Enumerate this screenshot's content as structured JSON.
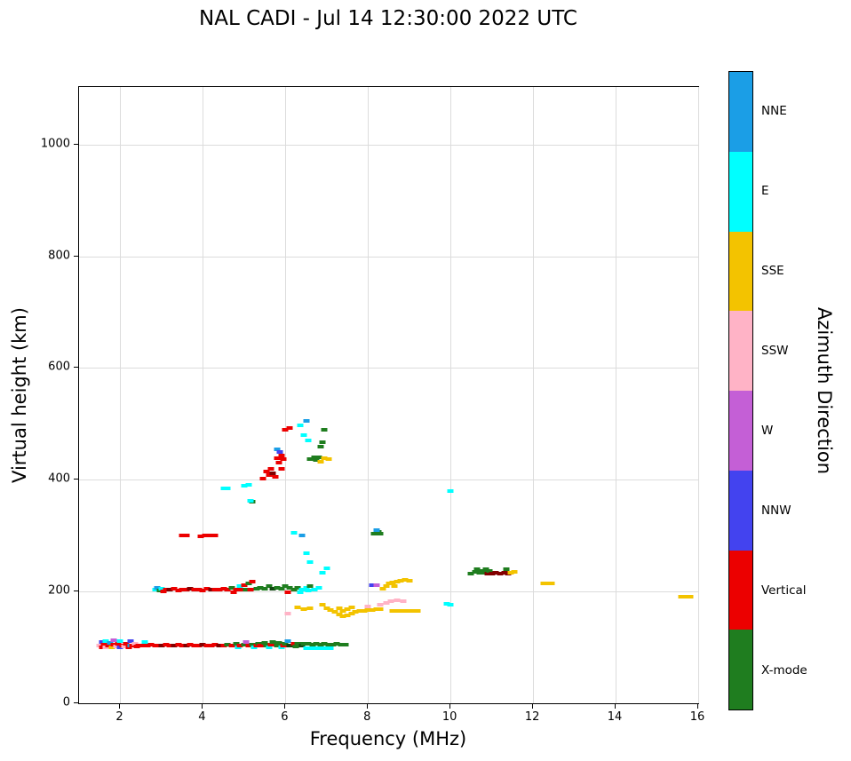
{
  "title": "NAL CADI - Jul 14 12:30:00 2022 UTC",
  "chart_data": {
    "type": "scatter",
    "title": "NAL CADI - Jul 14 12:30:00 2022 UTC",
    "xlabel": "Frequency (MHz)",
    "ylabel": "Virtual height (km)",
    "colorbar_title": "Azimuth Direction",
    "xlim": [
      1,
      16
    ],
    "ylim": [
      0,
      1103
    ],
    "xticks": [
      2,
      4,
      6,
      8,
      10,
      12,
      14,
      16
    ],
    "yticks": [
      0,
      200,
      400,
      600,
      800,
      1000
    ],
    "grid": true,
    "marker": "square",
    "categories": [
      {
        "code": "NNE",
        "label": "NNE",
        "color": "#1b9ee6"
      },
      {
        "code": "E",
        "label": "E",
        "color": "#00ffff"
      },
      {
        "code": "SSE",
        "label": "SSE",
        "color": "#f3c300"
      },
      {
        "code": "SSW",
        "label": "SSW",
        "color": "#ffb3c6"
      },
      {
        "code": "W",
        "label": "W",
        "color": "#c45fd6"
      },
      {
        "code": "NNW",
        "label": "NNW",
        "color": "#4343ef"
      },
      {
        "code": "V",
        "label": "Vertical",
        "color": "#ec0000"
      },
      {
        "code": "X",
        "label": "X-mode",
        "color": "#1f7d1f"
      }
    ],
    "points": [
      [
        1.5,
        103,
        "SSW"
      ],
      [
        1.55,
        100,
        "V"
      ],
      [
        1.55,
        110,
        "NNW"
      ],
      [
        1.6,
        105,
        "V"
      ],
      [
        1.65,
        100,
        "SSW"
      ],
      [
        1.65,
        112,
        "E"
      ],
      [
        1.7,
        104,
        "V"
      ],
      [
        1.75,
        108,
        "NNE"
      ],
      [
        1.8,
        100,
        "SSE"
      ],
      [
        1.85,
        105,
        "V"
      ],
      [
        1.85,
        113,
        "W"
      ],
      [
        1.9,
        102,
        "SSW"
      ],
      [
        1.95,
        107,
        "V"
      ],
      [
        2.0,
        100,
        "NNW"
      ],
      [
        2.0,
        112,
        "E"
      ],
      [
        2.05,
        104,
        "V"
      ],
      [
        2.1,
        102,
        "SSW"
      ],
      [
        2.15,
        106,
        "V"
      ],
      [
        2.2,
        100,
        "V"
      ],
      [
        2.25,
        104,
        "NNE"
      ],
      [
        2.25,
        112,
        "NNW"
      ],
      [
        2.3,
        103,
        "V"
      ],
      [
        2.35,
        106,
        "SSW"
      ],
      [
        2.4,
        102,
        "V"
      ],
      [
        2.45,
        104,
        "V"
      ],
      [
        2.55,
        103,
        "V"
      ],
      [
        2.6,
        110,
        "E"
      ],
      [
        2.65,
        104,
        "V"
      ],
      [
        2.75,
        105,
        "V"
      ],
      [
        2.85,
        103,
        "V"
      ],
      [
        2.9,
        104,
        "V"
      ],
      [
        3.0,
        104,
        "V",
        1
      ],
      [
        3.1,
        105,
        "V"
      ],
      [
        3.2,
        104,
        "V"
      ],
      [
        3.3,
        103,
        "V",
        1
      ],
      [
        3.4,
        105,
        "V"
      ],
      [
        3.5,
        104,
        "V"
      ],
      [
        3.6,
        104,
        "V",
        1
      ],
      [
        3.7,
        105,
        "V"
      ],
      [
        3.8,
        104,
        "V"
      ],
      [
        3.9,
        103,
        "V"
      ],
      [
        4.0,
        105,
        "V",
        1
      ],
      [
        4.1,
        104,
        "V"
      ],
      [
        4.2,
        104,
        "V"
      ],
      [
        4.3,
        105,
        "V"
      ],
      [
        4.4,
        104,
        "V",
        1
      ],
      [
        4.5,
        104,
        "V"
      ],
      [
        4.6,
        105,
        "X"
      ],
      [
        4.7,
        104,
        "V"
      ],
      [
        4.8,
        106,
        "X"
      ],
      [
        4.85,
        100,
        "E"
      ],
      [
        4.9,
        104,
        "V"
      ],
      [
        5.0,
        105,
        "X"
      ],
      [
        5.05,
        110,
        "W"
      ],
      [
        5.1,
        103,
        "V"
      ],
      [
        5.2,
        105,
        "X"
      ],
      [
        5.25,
        100,
        "E"
      ],
      [
        5.3,
        104,
        "V"
      ],
      [
        5.35,
        107,
        "X"
      ],
      [
        5.4,
        103,
        "V"
      ],
      [
        5.5,
        108,
        "X"
      ],
      [
        5.55,
        104,
        "X"
      ],
      [
        5.6,
        100,
        "E"
      ],
      [
        5.65,
        105,
        "V"
      ],
      [
        5.7,
        109,
        "X"
      ],
      [
        5.8,
        104,
        "X"
      ],
      [
        5.85,
        108,
        "X"
      ],
      [
        5.9,
        100,
        "E"
      ],
      [
        5.95,
        104,
        "V"
      ],
      [
        6.0,
        107,
        "X"
      ],
      [
        6.05,
        112,
        "NNE"
      ],
      [
        6.1,
        104,
        "X",
        1
      ],
      [
        6.2,
        106,
        "V"
      ],
      [
        6.25,
        102,
        "X"
      ],
      [
        6.3,
        107,
        "X"
      ],
      [
        6.4,
        104,
        "X",
        1
      ],
      [
        6.45,
        107,
        "X"
      ],
      [
        6.5,
        99,
        "E"
      ],
      [
        6.6,
        98,
        "E"
      ],
      [
        6.7,
        99,
        "E"
      ],
      [
        6.8,
        98,
        "E"
      ],
      [
        6.9,
        99,
        "E"
      ],
      [
        7.0,
        98,
        "E"
      ],
      [
        7.1,
        99,
        "E"
      ],
      [
        6.55,
        106,
        "X"
      ],
      [
        6.65,
        105,
        "X"
      ],
      [
        6.75,
        106,
        "X"
      ],
      [
        6.85,
        105,
        "X"
      ],
      [
        6.95,
        106,
        "X"
      ],
      [
        7.05,
        105,
        "X"
      ],
      [
        7.15,
        105,
        "X"
      ],
      [
        7.25,
        106,
        "X"
      ],
      [
        7.35,
        105,
        "X"
      ],
      [
        7.45,
        105,
        "X"
      ],
      [
        2.85,
        203,
        "E"
      ],
      [
        2.9,
        206,
        "NNE"
      ],
      [
        2.95,
        202,
        "X"
      ],
      [
        3.0,
        205,
        "E"
      ],
      [
        3.05,
        200,
        "V"
      ],
      [
        3.1,
        204,
        "V"
      ],
      [
        3.2,
        203,
        "V",
        1
      ],
      [
        3.3,
        205,
        "V"
      ],
      [
        3.4,
        202,
        "V"
      ],
      [
        3.5,
        204,
        "V"
      ],
      [
        3.6,
        203,
        "V"
      ],
      [
        3.7,
        205,
        "V",
        1
      ],
      [
        3.8,
        203,
        "V"
      ],
      [
        3.9,
        204,
        "V"
      ],
      [
        4.0,
        202,
        "V"
      ],
      [
        4.1,
        205,
        "V"
      ],
      [
        4.2,
        203,
        "V",
        1
      ],
      [
        4.3,
        204,
        "V"
      ],
      [
        4.4,
        203,
        "V"
      ],
      [
        4.5,
        205,
        "V"
      ],
      [
        4.6,
        203,
        "V"
      ],
      [
        4.7,
        206,
        "X"
      ],
      [
        4.75,
        199,
        "V"
      ],
      [
        4.8,
        204,
        "V"
      ],
      [
        4.9,
        210,
        "E"
      ],
      [
        4.95,
        203,
        "V"
      ],
      [
        5.0,
        212,
        "V"
      ],
      [
        5.05,
        204,
        "X"
      ],
      [
        5.1,
        215,
        "X"
      ],
      [
        5.15,
        203,
        "V"
      ],
      [
        5.2,
        218,
        "V"
      ],
      [
        5.3,
        205,
        "X"
      ],
      [
        5.4,
        207,
        "X"
      ],
      [
        5.5,
        205,
        "X"
      ],
      [
        5.6,
        209,
        "X"
      ],
      [
        5.7,
        205,
        "X",
        1
      ],
      [
        5.8,
        207,
        "X"
      ],
      [
        5.9,
        205,
        "X"
      ],
      [
        6.0,
        209,
        "X"
      ],
      [
        6.05,
        199,
        "V"
      ],
      [
        6.1,
        206,
        "X"
      ],
      [
        6.2,
        204,
        "X"
      ],
      [
        6.3,
        207,
        "X"
      ],
      [
        6.35,
        199,
        "E"
      ],
      [
        6.4,
        204,
        "E"
      ],
      [
        6.5,
        206,
        "E"
      ],
      [
        6.55,
        202,
        "E"
      ],
      [
        6.6,
        209,
        "X"
      ],
      [
        6.7,
        204,
        "E"
      ],
      [
        6.8,
        206,
        "E"
      ],
      [
        6.05,
        160,
        "SSW"
      ],
      [
        6.3,
        171,
        "SSE"
      ],
      [
        6.45,
        169,
        "SSE"
      ],
      [
        6.6,
        170,
        "SSE"
      ],
      [
        6.9,
        177,
        "SSE"
      ],
      [
        7.0,
        170,
        "SSE"
      ],
      [
        7.1,
        167,
        "SSE"
      ],
      [
        7.2,
        163,
        "SSE"
      ],
      [
        7.3,
        159,
        "SSE"
      ],
      [
        7.3,
        170,
        "SSE"
      ],
      [
        7.4,
        156,
        "SSE"
      ],
      [
        7.4,
        166,
        "SSE"
      ],
      [
        7.5,
        158,
        "SSE"
      ],
      [
        7.5,
        168,
        "SSE"
      ],
      [
        7.6,
        160,
        "SSE"
      ],
      [
        7.6,
        172,
        "SSE"
      ],
      [
        7.7,
        163,
        "SSE"
      ],
      [
        7.8,
        165,
        "SSE"
      ],
      [
        7.9,
        166,
        "SSE"
      ],
      [
        8.0,
        167,
        "SSE"
      ],
      [
        8.1,
        167,
        "SSE"
      ],
      [
        8.2,
        168,
        "SSE"
      ],
      [
        8.3,
        168,
        "SSE"
      ],
      [
        8.35,
        205,
        "SSE"
      ],
      [
        8.45,
        210,
        "SSE"
      ],
      [
        8.5,
        214,
        "SSE"
      ],
      [
        8.6,
        216,
        "SSE"
      ],
      [
        8.65,
        210,
        "SSE"
      ],
      [
        8.7,
        218,
        "SSE"
      ],
      [
        8.8,
        220,
        "SSE"
      ],
      [
        8.9,
        221,
        "SSE"
      ],
      [
        9.0,
        220,
        "SSE"
      ],
      [
        8.6,
        166,
        "SSE"
      ],
      [
        8.7,
        165,
        "SSE"
      ],
      [
        8.8,
        166,
        "SSE"
      ],
      [
        8.9,
        166,
        "SSE"
      ],
      [
        9.0,
        165,
        "SSE"
      ],
      [
        9.1,
        166,
        "SSE"
      ],
      [
        9.2,
        165,
        "SSE"
      ],
      [
        8.0,
        174,
        "SSW"
      ],
      [
        8.3,
        177,
        "SSW"
      ],
      [
        8.45,
        180,
        "SSW"
      ],
      [
        8.55,
        183,
        "SSW"
      ],
      [
        8.7,
        185,
        "SSW"
      ],
      [
        8.85,
        182,
        "SSW"
      ],
      [
        8.1,
        212,
        "NNW"
      ],
      [
        8.2,
        211,
        "W"
      ],
      [
        3.5,
        301,
        "V"
      ],
      [
        3.6,
        300,
        "V"
      ],
      [
        3.95,
        299,
        "V"
      ],
      [
        4.05,
        301,
        "V"
      ],
      [
        4.2,
        300,
        "V"
      ],
      [
        4.3,
        301,
        "V"
      ],
      [
        6.2,
        305,
        "E"
      ],
      [
        6.4,
        300,
        "NNE"
      ],
      [
        8.15,
        304,
        "X"
      ],
      [
        8.25,
        306,
        "X"
      ],
      [
        8.3,
        303,
        "X"
      ],
      [
        8.2,
        310,
        "NNE"
      ],
      [
        5.2,
        360,
        "X"
      ],
      [
        5.15,
        363,
        "E"
      ],
      [
        4.5,
        385,
        "E"
      ],
      [
        4.6,
        384,
        "E"
      ],
      [
        5.0,
        390,
        "E"
      ],
      [
        5.1,
        391,
        "E"
      ],
      [
        5.45,
        402,
        "V"
      ],
      [
        5.55,
        415,
        "V"
      ],
      [
        5.6,
        408,
        "V"
      ],
      [
        5.65,
        420,
        "V"
      ],
      [
        5.7,
        412,
        "V",
        1
      ],
      [
        5.75,
        405,
        "V"
      ],
      [
        5.8,
        438,
        "V"
      ],
      [
        5.85,
        430,
        "V"
      ],
      [
        5.9,
        444,
        "V"
      ],
      [
        5.95,
        437,
        "V"
      ],
      [
        5.9,
        420,
        "V"
      ],
      [
        5.8,
        455,
        "NNE"
      ],
      [
        5.87,
        450,
        "NNW"
      ],
      [
        6.0,
        490,
        "V"
      ],
      [
        6.1,
        492,
        "V"
      ],
      [
        6.5,
        505,
        "NNE"
      ],
      [
        6.35,
        497,
        "E"
      ],
      [
        6.45,
        480,
        "E"
      ],
      [
        6.55,
        470,
        "E"
      ],
      [
        6.6,
        437,
        "X"
      ],
      [
        6.7,
        441,
        "X"
      ],
      [
        6.75,
        436,
        "X"
      ],
      [
        6.8,
        440,
        "X"
      ],
      [
        6.85,
        459,
        "X"
      ],
      [
        6.9,
        467,
        "X"
      ],
      [
        6.95,
        489,
        "X"
      ],
      [
        6.85,
        432,
        "SSE"
      ],
      [
        6.95,
        438,
        "SSE"
      ],
      [
        7.05,
        437,
        "SSE"
      ],
      [
        6.5,
        268,
        "E"
      ],
      [
        6.6,
        252,
        "E"
      ],
      [
        6.9,
        233,
        "E"
      ],
      [
        7.0,
        242,
        "E"
      ],
      [
        9.9,
        178,
        "E"
      ],
      [
        10.0,
        177,
        "E"
      ],
      [
        10.0,
        380,
        "E"
      ],
      [
        10.5,
        232,
        "X"
      ],
      [
        10.6,
        235,
        "X"
      ],
      [
        10.65,
        240,
        "X"
      ],
      [
        10.7,
        233,
        "X"
      ],
      [
        10.75,
        237,
        "X"
      ],
      [
        10.8,
        234,
        "X"
      ],
      [
        10.85,
        240,
        "X"
      ],
      [
        10.9,
        232,
        "V",
        1
      ],
      [
        10.95,
        237,
        "X"
      ],
      [
        11.0,
        232,
        "V",
        1
      ],
      [
        11.1,
        233,
        "V",
        1
      ],
      [
        11.2,
        232,
        "V",
        1
      ],
      [
        11.3,
        234,
        "V",
        1
      ],
      [
        11.35,
        240,
        "X"
      ],
      [
        11.4,
        232,
        "V",
        1
      ],
      [
        11.45,
        234,
        "SSE"
      ],
      [
        11.55,
        236,
        "SSE"
      ],
      [
        12.25,
        214,
        "SSE"
      ],
      [
        12.35,
        215,
        "SSE"
      ],
      [
        12.45,
        214,
        "SSE"
      ],
      [
        15.6,
        190,
        "SSE"
      ],
      [
        15.7,
        191,
        "SSE"
      ],
      [
        15.8,
        190,
        "SSE"
      ]
    ]
  }
}
